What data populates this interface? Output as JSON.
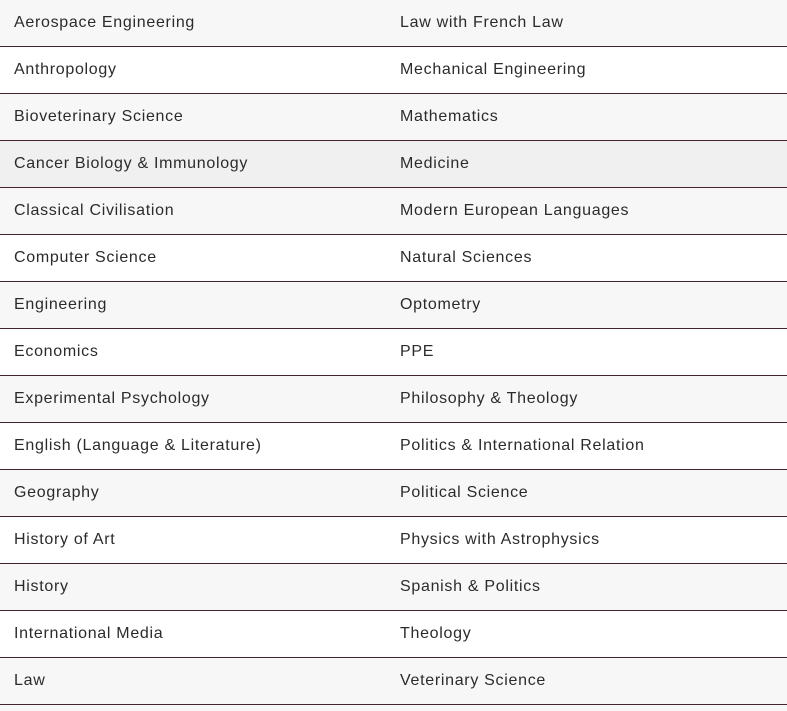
{
  "table": {
    "highlighted_row_index": 3,
    "rows": [
      {
        "left": "Aerospace Engineering",
        "right": "Law with French Law"
      },
      {
        "left": "Anthropology",
        "right": "Mechanical Engineering"
      },
      {
        "left": "Bioveterinary Science",
        "right": "Mathematics"
      },
      {
        "left": "Cancer Biology & Immunology",
        "right": "Medicine"
      },
      {
        "left": "Classical Civilisation",
        "right": "Modern European Languages"
      },
      {
        "left": "Computer Science",
        "right": "Natural Sciences"
      },
      {
        "left": "Engineering",
        "right": "Optometry"
      },
      {
        "left": "Economics",
        "right": "PPE"
      },
      {
        "left": "Experimental Psychology",
        "right": "Philosophy & Theology"
      },
      {
        "left": "English (Language & Literature)",
        "right": "Politics & International Relation"
      },
      {
        "left": "Geography",
        "right": "Political Science"
      },
      {
        "left": "History of Art",
        "right": "Physics with Astrophysics"
      },
      {
        "left": "History",
        "right": "Spanish & Politics"
      },
      {
        "left": "International Media",
        "right": "Theology"
      },
      {
        "left": "Law",
        "right": "Veterinary Science"
      }
    ]
  },
  "theme": {
    "border_color": "#44242e",
    "zebra_color": "#f7f7f8",
    "row_white": "#ffffff",
    "highlight_color": "#f0f0f1",
    "text_color": "#2b2b2b"
  }
}
